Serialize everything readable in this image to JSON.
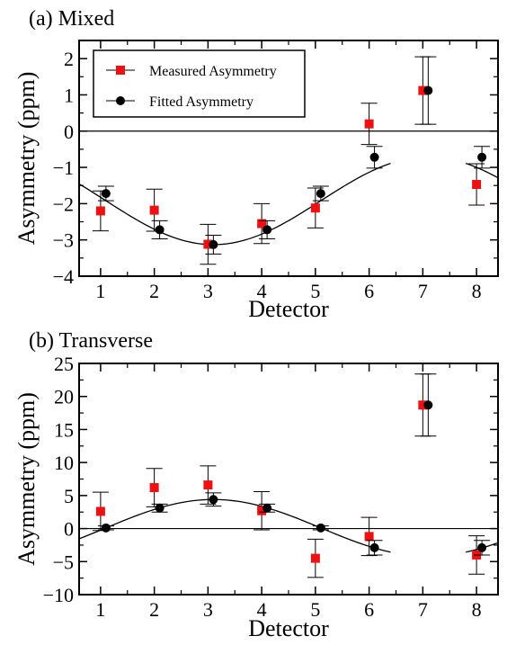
{
  "chart_data": [
    {
      "type": "scatter",
      "title": "(a) Mixed",
      "xlabel": "Detector",
      "ylabel": "Asymmetry (ppm)",
      "xlim": [
        0.6,
        8.4
      ],
      "ylim": [
        -4,
        2.5
      ],
      "xticks": [
        1,
        2,
        3,
        4,
        5,
        6,
        7,
        8
      ],
      "yticks": [
        -4,
        -3,
        -2,
        -1,
        0,
        1,
        2
      ],
      "zero_line": true,
      "legend": {
        "position": "top-left"
      },
      "series": [
        {
          "name": "Measured Asymmetry",
          "marker": "square",
          "color": "#ee1111",
          "points": [
            {
              "x": 1,
              "y": -2.2,
              "err": 0.55
            },
            {
              "x": 2,
              "y": -2.18,
              "err": 0.58
            },
            {
              "x": 3,
              "y": -3.12,
              "err": 0.55
            },
            {
              "x": 4,
              "y": -2.55,
              "err": 0.55
            },
            {
              "x": 5,
              "y": -2.12,
              "err": 0.55
            },
            {
              "x": 6,
              "y": 0.2,
              "err": 0.57
            },
            {
              "x": 7,
              "y": 1.12,
              "err": 0.93
            },
            {
              "x": 8,
              "y": -1.47,
              "err": 0.57
            }
          ]
        },
        {
          "name": "Fitted Asymmetry",
          "marker": "circle",
          "color": "#000000",
          "points": [
            {
              "x": 1.1,
              "y": -1.72,
              "err": 0.2
            },
            {
              "x": 2.1,
              "y": -2.72,
              "err": 0.25
            },
            {
              "x": 3.1,
              "y": -3.13,
              "err": 0.26
            },
            {
              "x": 4.1,
              "y": -2.72,
              "err": 0.25
            },
            {
              "x": 5.1,
              "y": -1.72,
              "err": 0.2
            },
            {
              "x": 6.1,
              "y": -0.72,
              "err": 0.3
            },
            {
              "x": 7.1,
              "y": 1.12,
              "err": 0.93
            },
            {
              "x": 8.1,
              "y": -0.72,
              "err": 0.3
            }
          ]
        }
      ],
      "fit_curve": {
        "form": "A*cos(2*pi*(x - x0)/8) + C",
        "A": 1.21,
        "x0": 7.1,
        "C": -1.92,
        "ranges": [
          [
            0.6,
            6.4
          ],
          [
            7.8,
            8.4
          ]
        ]
      }
    },
    {
      "type": "scatter",
      "title": "(b) Transverse",
      "xlabel": "Detector",
      "ylabel": "Asymmetry (ppm)",
      "xlim": [
        0.6,
        8.4
      ],
      "ylim": [
        -10,
        25
      ],
      "xticks": [
        1,
        2,
        3,
        4,
        5,
        6,
        7,
        8
      ],
      "yticks": [
        -10,
        -5,
        0,
        5,
        10,
        15,
        20,
        25
      ],
      "zero_line": true,
      "series": [
        {
          "name": "Measured Asymmetry",
          "marker": "square",
          "color": "#ee1111",
          "points": [
            {
              "x": 1,
              "y": 2.6,
              "err": 2.9
            },
            {
              "x": 2,
              "y": 6.2,
              "err": 2.9
            },
            {
              "x": 3,
              "y": 6.6,
              "err": 2.9
            },
            {
              "x": 4,
              "y": 2.7,
              "err": 2.9
            },
            {
              "x": 5,
              "y": -4.5,
              "err": 2.9
            },
            {
              "x": 6,
              "y": -1.2,
              "err": 2.9
            },
            {
              "x": 7,
              "y": 18.7,
              "err": 4.7
            },
            {
              "x": 8,
              "y": -4.0,
              "err": 2.9
            }
          ]
        },
        {
          "name": "Fitted Asymmetry",
          "marker": "circle",
          "color": "#000000",
          "points": [
            {
              "x": 1.1,
              "y": 0.1,
              "err": 0.3
            },
            {
              "x": 2.1,
              "y": 3.1,
              "err": 0.6
            },
            {
              "x": 3.1,
              "y": 4.4,
              "err": 1.0
            },
            {
              "x": 4.1,
              "y": 3.1,
              "err": 0.6
            },
            {
              "x": 5.1,
              "y": 0.1,
              "err": 0.3
            },
            {
              "x": 6.1,
              "y": -2.9,
              "err": 1.1
            },
            {
              "x": 7.1,
              "y": 18.7,
              "err": 4.7
            },
            {
              "x": 8.1,
              "y": -2.9,
              "err": 1.1
            }
          ]
        }
      ],
      "fit_curve": {
        "form": "A*cos(2*pi*(x - x0)/8) + C",
        "A": 4.3,
        "x0": 3.1,
        "C": 0.1,
        "ranges": [
          [
            0.6,
            6.4
          ],
          [
            7.8,
            8.4
          ]
        ]
      }
    }
  ]
}
